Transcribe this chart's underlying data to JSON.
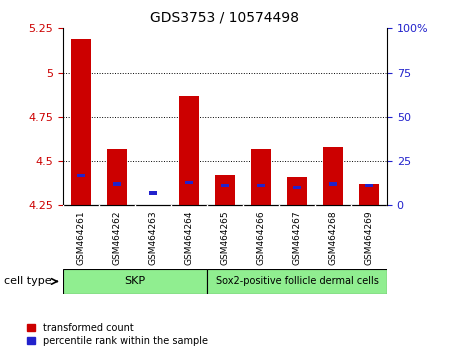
{
  "title": "GDS3753 / 10574498",
  "samples": [
    "GSM464261",
    "GSM464262",
    "GSM464263",
    "GSM464264",
    "GSM464265",
    "GSM464266",
    "GSM464267",
    "GSM464268",
    "GSM464269"
  ],
  "red_values": [
    5.19,
    4.57,
    4.25,
    4.87,
    4.42,
    4.57,
    4.41,
    4.58,
    4.37
  ],
  "blue_values": [
    4.42,
    4.37,
    4.32,
    4.38,
    4.36,
    4.36,
    4.35,
    4.37,
    4.36
  ],
  "y_min": 4.25,
  "y_max": 5.25,
  "y_ticks_left": [
    4.25,
    4.5,
    4.75,
    5.0,
    5.25
  ],
  "y_ticks_left_labels": [
    "4.25",
    "4.5",
    "4.75",
    "5",
    "5.25"
  ],
  "y_ticks_right_pct": [
    0,
    25,
    50,
    75,
    100
  ],
  "y_ticks_right_labels": [
    "0",
    "25",
    "50",
    "75",
    "100%"
  ],
  "bar_width": 0.55,
  "bar_base": 4.25,
  "red_color": "#cc0000",
  "blue_color": "#2222cc",
  "cell_type_label": "cell type",
  "group1_label": "SKP",
  "group1_count": 4,
  "group2_label": "Sox2-positive follicle dermal cells",
  "group2_count": 5,
  "group_color": "#90ee90",
  "sample_box_color": "#d3d3d3",
  "plot_bg": "#ffffff",
  "tick_color_left": "#cc0000",
  "tick_color_right": "#2222cc",
  "legend_labels": [
    "transformed count",
    "percentile rank within the sample"
  ],
  "legend_colors": [
    "#cc0000",
    "#2222cc"
  ]
}
